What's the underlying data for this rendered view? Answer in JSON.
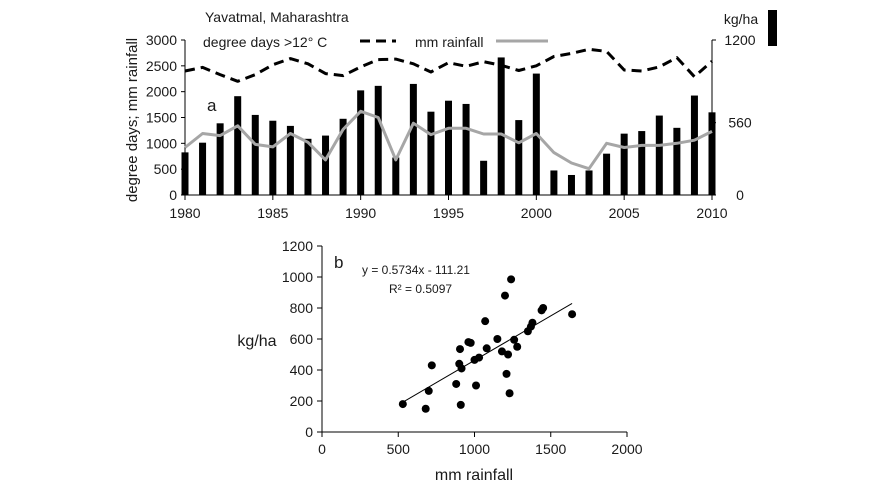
{
  "chart_data": [
    {
      "panel": "a",
      "type": "bar+line",
      "title": "Yavatmal, Maharashtra",
      "ylabel_left": "degree days;  mm rainfall",
      "ylabel_right": "kg/ha",
      "xlim": [
        1980,
        2010
      ],
      "ylim_left": [
        0,
        3000
      ],
      "ylim_right": [
        0,
        1200
      ],
      "x_ticks": [
        "1980",
        "1985",
        "1990",
        "1995",
        "2000",
        "2005",
        "2010"
      ],
      "y_ticks_left": [
        "0",
        "500",
        "1000",
        "1500",
        "2000",
        "2500",
        "3000"
      ],
      "y_ticks_right": [
        "0",
        "560",
        "1200"
      ],
      "legend": {
        "degree_days": "degree days >12° C",
        "rainfall": "mm rainfall",
        "yield": "kg/ha"
      },
      "years": [
        1980,
        1981,
        1982,
        1983,
        1984,
        1985,
        1986,
        1987,
        1988,
        1989,
        1990,
        1991,
        1992,
        1993,
        1994,
        1995,
        1996,
        1997,
        1998,
        1999,
        2000,
        2001,
        2002,
        2003,
        2004,
        2005,
        2006,
        2007,
        2008,
        2009,
        2010
      ],
      "series": [
        {
          "name": "kg/ha",
          "kind": "bar",
          "axis": "right",
          "color": "#000000",
          "values": [
            330,
            405,
            555,
            765,
            620,
            575,
            535,
            435,
            460,
            590,
            810,
            845,
            290,
            860,
            645,
            730,
            705,
            265,
            1065,
            580,
            940,
            190,
            155,
            190,
            320,
            475,
            495,
            615,
            520,
            770,
            640
          ]
        },
        {
          "name": "degree days >12° C",
          "kind": "line-dashed",
          "axis": "left",
          "color": "#000000",
          "values": [
            2400,
            2470,
            2330,
            2200,
            2330,
            2520,
            2640,
            2540,
            2350,
            2310,
            2480,
            2620,
            2630,
            2540,
            2380,
            2560,
            2490,
            2580,
            2510,
            2410,
            2500,
            2680,
            2740,
            2820,
            2780,
            2420,
            2400,
            2480,
            2660,
            2290,
            2590
          ]
        },
        {
          "name": "mm rainfall",
          "kind": "line",
          "axis": "left",
          "color": "#a6a6a6",
          "values": [
            920,
            1190,
            1150,
            1340,
            980,
            930,
            1190,
            1020,
            680,
            1270,
            1620,
            1500,
            680,
            1390,
            1170,
            1290,
            1290,
            1180,
            1180,
            1010,
            1190,
            820,
            620,
            510,
            1000,
            920,
            960,
            960,
            1000,
            1060,
            1230
          ]
        }
      ],
      "panel_label": "a"
    },
    {
      "panel": "b",
      "type": "scatter",
      "xlabel": "mm rainfall",
      "ylabel": "kg/ha",
      "xlim": [
        0,
        2000
      ],
      "ylim": [
        0,
        1200
      ],
      "x_ticks": [
        "0",
        "500",
        "1000",
        "1500",
        "2000"
      ],
      "y_ticks": [
        "0",
        "200",
        "400",
        "600",
        "800",
        "1000",
        "1200"
      ],
      "annotation_equation": "y = 0.5734x - 111.21",
      "annotation_r2": "R² = 0.5097",
      "trendline": {
        "slope": 0.5734,
        "intercept": -111.21,
        "x_range": [
          530,
          1640
        ]
      },
      "point_color": "#000000",
      "points": [
        [
          530,
          180
        ],
        [
          680,
          150
        ],
        [
          700,
          265
        ],
        [
          720,
          430
        ],
        [
          880,
          310
        ],
        [
          900,
          440
        ],
        [
          905,
          535
        ],
        [
          910,
          175
        ],
        [
          915,
          410
        ],
        [
          960,
          580
        ],
        [
          975,
          575
        ],
        [
          1000,
          465
        ],
        [
          1010,
          300
        ],
        [
          1030,
          480
        ],
        [
          1070,
          715
        ],
        [
          1080,
          540
        ],
        [
          1150,
          600
        ],
        [
          1180,
          520
        ],
        [
          1200,
          880
        ],
        [
          1210,
          375
        ],
        [
          1220,
          500
        ],
        [
          1230,
          250
        ],
        [
          1240,
          985
        ],
        [
          1260,
          595
        ],
        [
          1280,
          550
        ],
        [
          1350,
          650
        ],
        [
          1370,
          680
        ],
        [
          1380,
          705
        ],
        [
          1440,
          785
        ],
        [
          1450,
          800
        ],
        [
          1640,
          760
        ]
      ],
      "panel_label": "b"
    }
  ]
}
